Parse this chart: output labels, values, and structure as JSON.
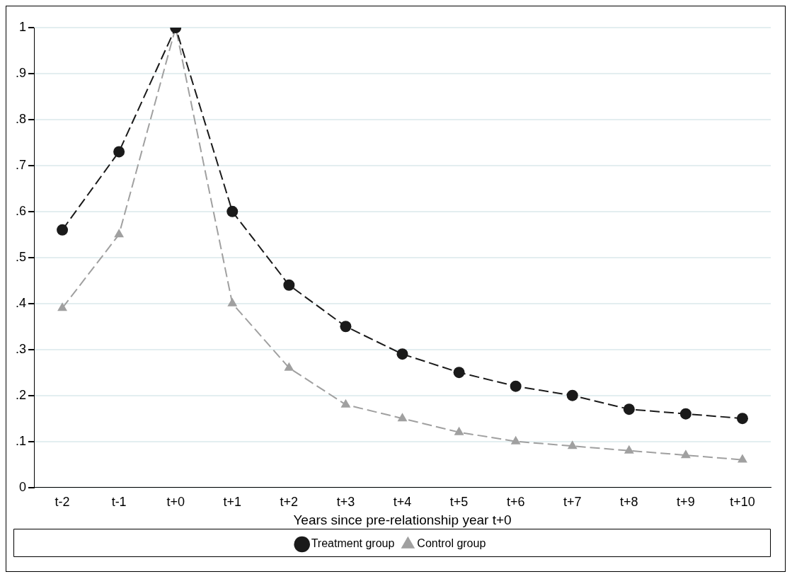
{
  "chart_data": {
    "type": "line",
    "xlabel": "Years since pre-relationship year t+0",
    "categories": [
      "t-2",
      "t-1",
      "t+0",
      "t+1",
      "t+2",
      "t+3",
      "t+4",
      "t+5",
      "t+6",
      "t+7",
      "t+8",
      "t+9",
      "t+10"
    ],
    "ylim": [
      0,
      1
    ],
    "yticks": [
      0,
      {
        "value": 0.1,
        "label": ".1"
      },
      {
        "value": 0.2,
        "label": ".2"
      },
      {
        "value": 0.3,
        "label": ".3"
      },
      {
        "value": 0.4,
        "label": ".4"
      },
      {
        "value": 0.5,
        "label": ".5"
      },
      {
        "value": 0.6,
        "label": ".6"
      },
      {
        "value": 0.7,
        "label": ".7"
      },
      {
        "value": 0.8,
        "label": ".8"
      },
      {
        "value": 0.9,
        "label": ".9"
      },
      1
    ],
    "grid": "y",
    "legend": "bottom",
    "line_style": "dashed",
    "series": [
      {
        "name": "Treatment group",
        "color": "#1a1a1a",
        "marker": "circle",
        "values": [
          0.56,
          0.73,
          1.0,
          0.6,
          0.44,
          0.35,
          0.29,
          0.25,
          0.22,
          0.2,
          0.17,
          0.16,
          0.15
        ]
      },
      {
        "name": "Control group",
        "color": "#a0a0a0",
        "marker": "triangle",
        "values": [
          0.39,
          0.55,
          1.0,
          0.4,
          0.26,
          0.18,
          0.15,
          0.12,
          0.1,
          0.09,
          0.08,
          0.07,
          0.06
        ]
      }
    ]
  }
}
